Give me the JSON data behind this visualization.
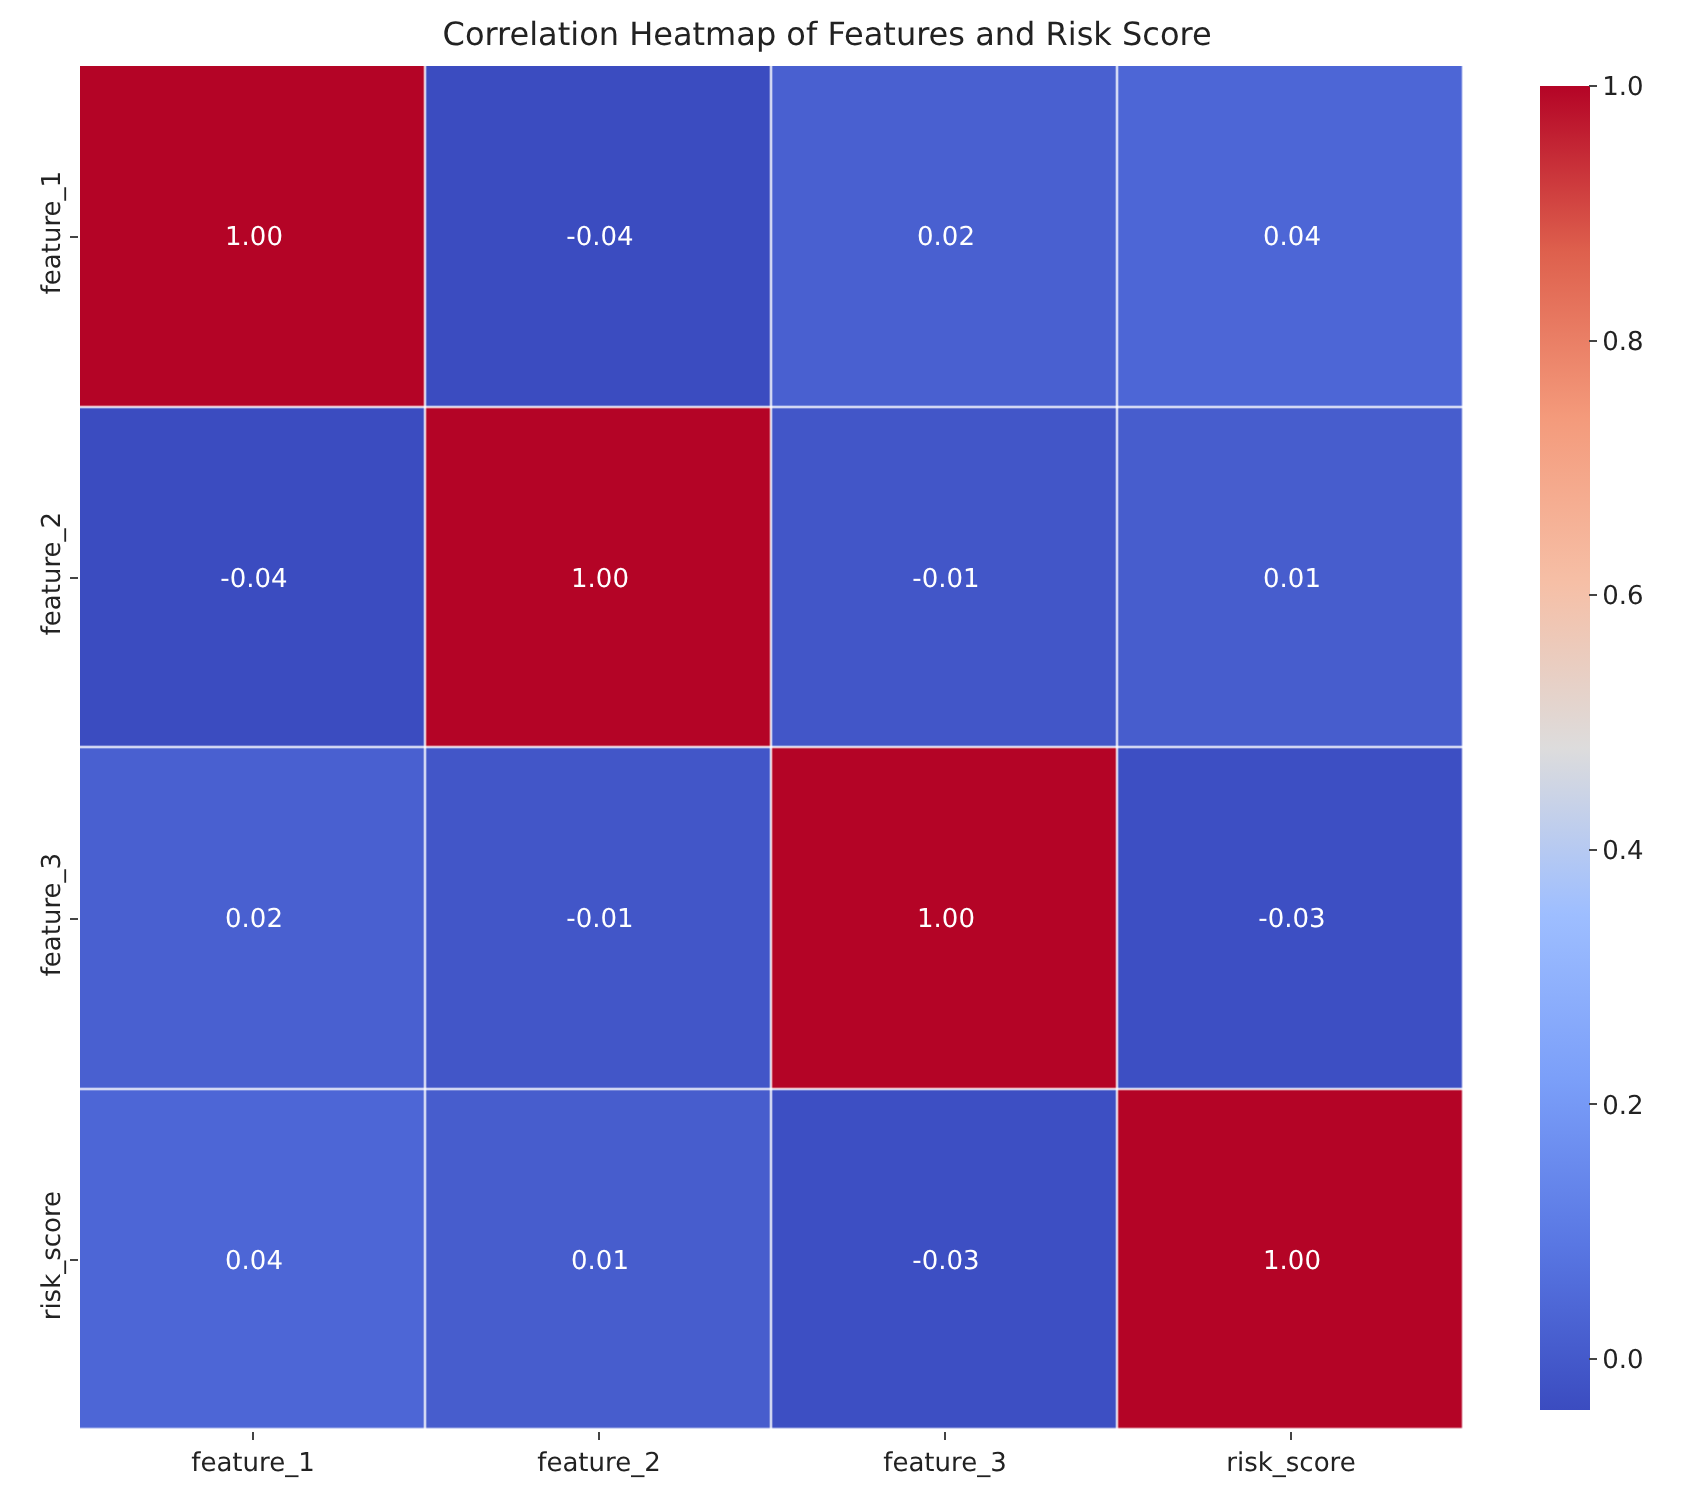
{
  "chart_data": {
    "type": "heatmap",
    "title": "Correlation Heatmap of Features and Risk Score",
    "categories": [
      "feature_1",
      "feature_2",
      "feature_3",
      "risk_score"
    ],
    "y_categories": [
      "feature_1",
      "feature_2",
      "feature_3",
      "risk_score"
    ],
    "cells": [
      [
        1.0,
        -0.04,
        0.02,
        0.04
      ],
      [
        -0.04,
        1.0,
        -0.01,
        0.01
      ],
      [
        0.02,
        -0.01,
        1.0,
        -0.03
      ],
      [
        0.04,
        0.01,
        -0.03,
        1.0
      ]
    ],
    "cell_labels": [
      [
        "1.00",
        "-0.04",
        "0.02",
        "0.04"
      ],
      [
        "-0.04",
        "1.00",
        "-0.01",
        "0.01"
      ],
      [
        "0.02",
        "-0.01",
        "1.00",
        "-0.03"
      ],
      [
        "0.04",
        "0.01",
        "-0.03",
        "1.00"
      ]
    ],
    "clim": [
      -0.04,
      1.0
    ],
    "cticks": [
      {
        "value": 0,
        "label": "0.0"
      },
      {
        "value": 0.2,
        "label": "0.2"
      },
      {
        "value": 0.4,
        "label": "0.4"
      },
      {
        "value": 0.6,
        "label": "0.6"
      },
      {
        "value": 0.8,
        "label": "0.8"
      },
      {
        "value": 1,
        "label": "1.0"
      }
    ]
  }
}
